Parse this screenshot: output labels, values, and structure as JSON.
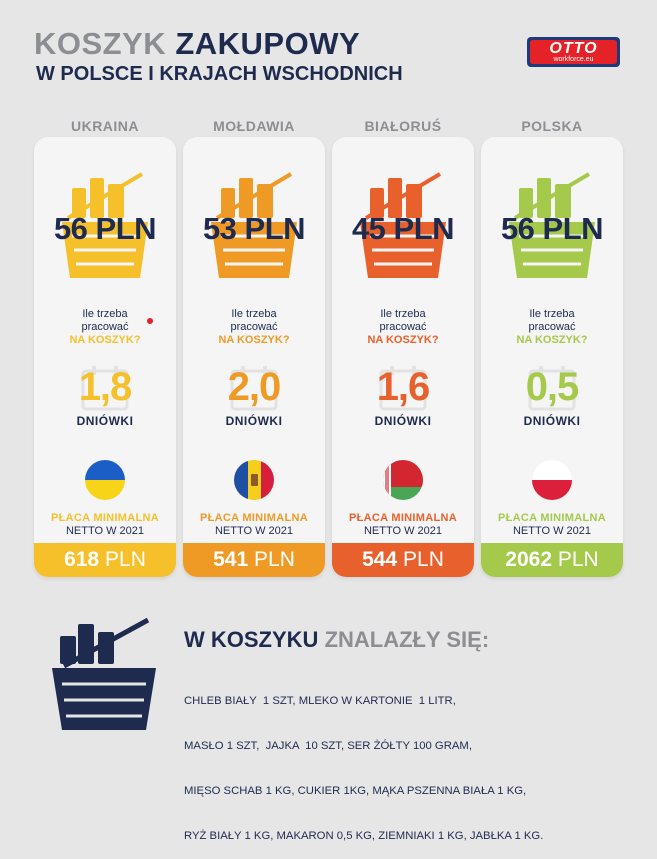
{
  "header": {
    "title_part1": "KOSZYK",
    "title_part2": "ZAKUPOWY",
    "subtitle": "W POLSCE I KRAJACH WSCHODNICH",
    "logo_main": "OTTO",
    "logo_sub": "workforce.eu"
  },
  "colors": {
    "ukraina": "#f5c02a",
    "moldawia": "#f09a26",
    "bialorus": "#e8612d",
    "polska": "#a5c94a",
    "navy": "#1f2a4f",
    "gray": "#8d8e93"
  },
  "common": {
    "question_line1": "Ile trzeba",
    "question_line2": "pracować",
    "question_line3": "NA KOSZYK?",
    "days_unit": "DNIÓWKI",
    "min_wage_line1": "PŁACA MINIMALNA",
    "min_wage_line2": "NETTO W 2021"
  },
  "countries": [
    {
      "name": "UKRAINA",
      "basket_price": "56 PLN",
      "days": "1,8",
      "wage_amount": "618",
      "wage_currency": "PLN",
      "flag": "ukraine-flag"
    },
    {
      "name": "MOŁDAWIA",
      "basket_price": "53 PLN",
      "days": "2,0",
      "wage_amount": "541",
      "wage_currency": "PLN",
      "flag": "moldova-flag"
    },
    {
      "name": "BIAŁORUŚ",
      "basket_price": "45 PLN",
      "days": "1,6",
      "wage_amount": "544",
      "wage_currency": "PLN",
      "flag": "belarus-flag"
    },
    {
      "name": "POLSKA",
      "basket_price": "56 PLN",
      "days": "0,5",
      "wage_amount": "2062",
      "wage_currency": "PLN",
      "flag": "poland-flag"
    }
  ],
  "basket_contents": {
    "title_part1": "W KOSZYKU",
    "title_part2": "ZNALAZŁY SIĘ:",
    "lines": [
      "CHLEB BIAŁY  1 SZT, MLEKO W KARTONIE  1 LITR,",
      "MASŁO 1 SZT,  JAJKA  10 SZT, SER ŻÓŁTY 100 GRAM,",
      "MIĘSO SCHAB 1 KG, CUKIER 1KG, MĄKA PSZENNA BIAŁA 1 KG,",
      "RYŻ BIAŁY 1 KG, MAKARON 0,5 KG, ZIEMNIAKI 1 KG, JABŁKA 1 KG."
    ]
  }
}
